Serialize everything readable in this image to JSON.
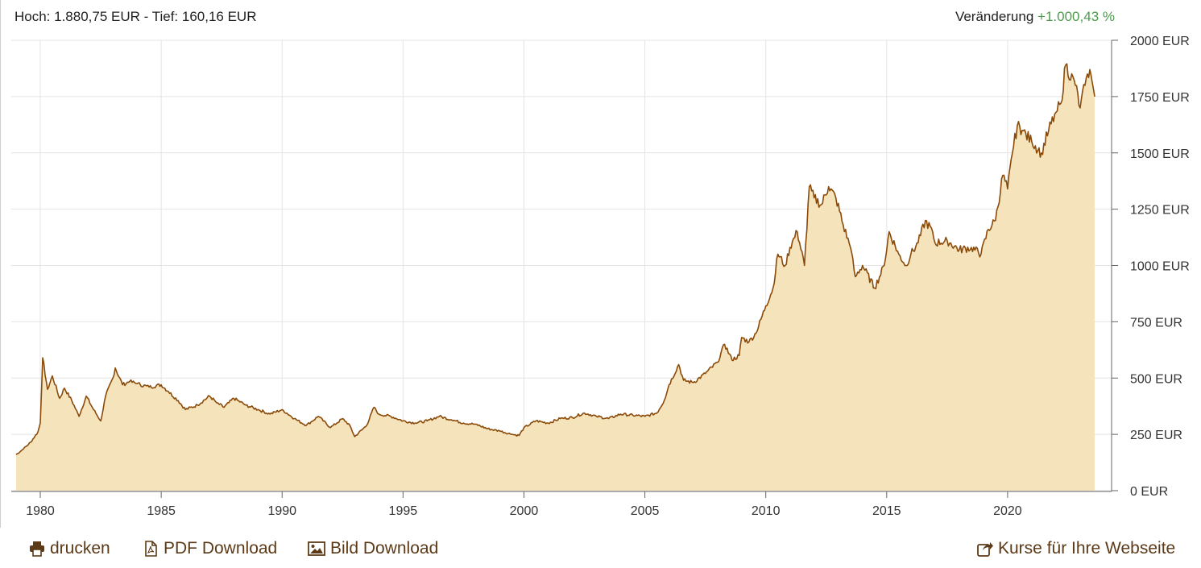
{
  "header": {
    "range_text": "Hoch: 1.880,75 EUR - Tief: 160,16 EUR",
    "change_label": "Veränderung",
    "change_value": "+1.000,43 %"
  },
  "footer": {
    "print_label": "drucken",
    "pdf_label": "PDF Download",
    "image_label": "Bild Download",
    "embed_label": "Kurse für Ihre Webseite"
  },
  "colors": {
    "line": "#8a4a0a",
    "fill": "#f5e4bb",
    "grid": "#e4e4e4",
    "axis": "#666666",
    "change_positive": "#4d9a4d",
    "footer_text": "#5c3a17"
  },
  "icons": {
    "print": "print-icon",
    "pdf": "pdf-file-icon",
    "image": "image-icon",
    "embed": "share-icon"
  },
  "chart_data": {
    "type": "area",
    "xlim": [
      1978.8,
      2024.3
    ],
    "ylim": [
      0,
      2000
    ],
    "x_ticks": [
      1980,
      1985,
      1990,
      1995,
      2000,
      2005,
      2010,
      2015,
      2020
    ],
    "y_ticks": [
      0,
      250,
      500,
      750,
      1000,
      1250,
      1500,
      1750,
      2000
    ],
    "y_tick_labels": [
      "0 EUR",
      "250 EUR",
      "500 EUR",
      "750 EUR",
      "1000 EUR",
      "1250 EUR",
      "1500 EUR",
      "1750 EUR",
      "2000 EUR"
    ],
    "grid": true,
    "y_axis_position": "right",
    "x": [
      1979.0,
      1979.3,
      1979.6,
      1979.9,
      1980.0,
      1980.1,
      1980.3,
      1980.5,
      1980.8,
      1981.0,
      1981.3,
      1981.6,
      1981.9,
      1982.2,
      1982.5,
      1982.7,
      1983.0,
      1983.1,
      1983.4,
      1983.7,
      1984.0,
      1984.5,
      1985.0,
      1985.3,
      1985.7,
      1986.0,
      1986.5,
      1987.0,
      1987.3,
      1987.6,
      1988.0,
      1988.5,
      1989.0,
      1989.5,
      1990.0,
      1990.5,
      1991.0,
      1991.5,
      1992.0,
      1992.5,
      1992.8,
      1993.0,
      1993.5,
      1993.8,
      1994.0,
      1994.5,
      1995.0,
      1995.5,
      1996.0,
      1996.5,
      1997.0,
      1997.5,
      1998.0,
      1998.5,
      1999.0,
      1999.5,
      1999.8,
      2000.0,
      2000.5,
      2001.0,
      2001.5,
      2002.0,
      2002.5,
      2003.0,
      2003.5,
      2004.0,
      2004.5,
      2005.0,
      2005.5,
      2005.8,
      2006.0,
      2006.4,
      2006.6,
      2007.0,
      2007.5,
      2008.0,
      2008.3,
      2008.6,
      2008.9,
      2009.0,
      2009.3,
      2009.6,
      2010.0,
      2010.3,
      2010.5,
      2010.8,
      2011.0,
      2011.3,
      2011.6,
      2011.8,
      2012.0,
      2012.3,
      2012.6,
      2012.9,
      2013.2,
      2013.5,
      2013.7,
      2014.0,
      2014.5,
      2014.9,
      2015.1,
      2015.5,
      2015.8,
      2016.0,
      2016.3,
      2016.6,
      2016.9,
      2017.0,
      2017.5,
      2018.0,
      2018.5,
      2018.9,
      2019.2,
      2019.5,
      2019.8,
      2020.0,
      2020.2,
      2020.4,
      2020.6,
      2021.0,
      2021.4,
      2021.7,
      2022.0,
      2022.2,
      2022.4,
      2022.8,
      2023.0,
      2023.2,
      2023.4,
      2023.6
    ],
    "series": [
      {
        "values": [
          160,
          185,
          215,
          260,
          300,
          590,
          450,
          510,
          410,
          455,
          400,
          330,
          420,
          360,
          310,
          420,
          500,
          545,
          470,
          485,
          475,
          460,
          470,
          440,
          400,
          360,
          380,
          420,
          390,
          370,
          410,
          380,
          360,
          340,
          360,
          320,
          290,
          330,
          280,
          320,
          290,
          240,
          290,
          370,
          340,
          330,
          310,
          300,
          310,
          330,
          315,
          300,
          295,
          275,
          265,
          250,
          245,
          280,
          310,
          300,
          320,
          325,
          345,
          330,
          320,
          340,
          335,
          330,
          345,
          400,
          470,
          560,
          490,
          480,
          520,
          570,
          650,
          580,
          600,
          680,
          660,
          700,
          820,
          900,
          1050,
          1000,
          1080,
          1150,
          1000,
          1350,
          1300,
          1270,
          1350,
          1300,
          1180,
          1080,
          950,
          1000,
          900,
          1000,
          1150,
          1050,
          1000,
          1050,
          1100,
          1200,
          1150,
          1100,
          1110,
          1070,
          1080,
          1050,
          1160,
          1200,
          1400,
          1340,
          1500,
          1620,
          1600,
          1550,
          1500,
          1600,
          1680,
          1720,
          1890,
          1800,
          1700,
          1800,
          1870,
          1750
        ]
      }
    ]
  }
}
